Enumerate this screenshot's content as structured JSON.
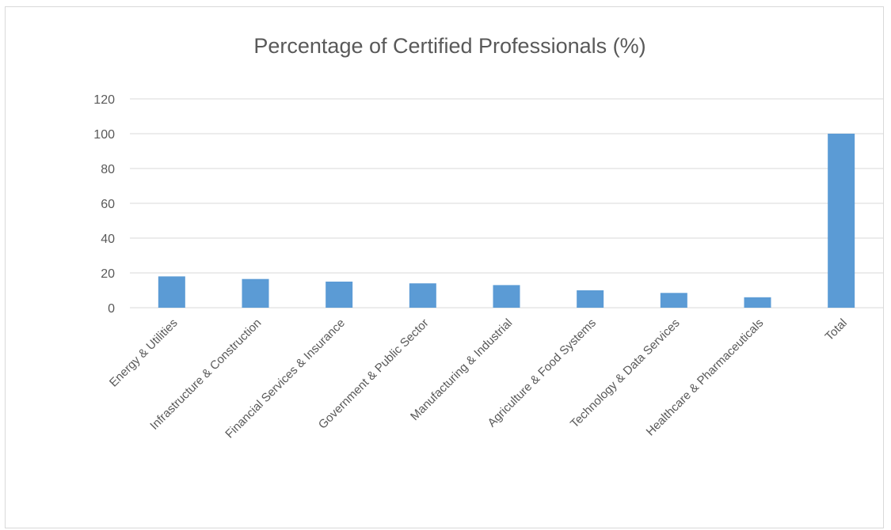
{
  "chart_data": {
    "type": "bar",
    "title": "Percentage of Certified Professionals (%)",
    "xlabel": "",
    "ylabel": "",
    "categories": [
      "Energy & Utilities",
      "Infrastructure & Construction",
      "Financial Services & Insurance",
      "Government & Public Sector",
      "Manufacturing & Industrial",
      "Agriculture & Food Systems",
      "Technology & Data Services",
      "Healthcare & Pharmaceuticals",
      "Total"
    ],
    "values": [
      18,
      16.5,
      15,
      14,
      13,
      10,
      8.5,
      6,
      100
    ],
    "ylim": [
      0,
      120
    ],
    "yticks": [
      0,
      20,
      40,
      60,
      80,
      100,
      120
    ],
    "grid": true,
    "legend": "none",
    "bar_color": "#5b9bd5",
    "grid_color": "#d9d9d9"
  }
}
